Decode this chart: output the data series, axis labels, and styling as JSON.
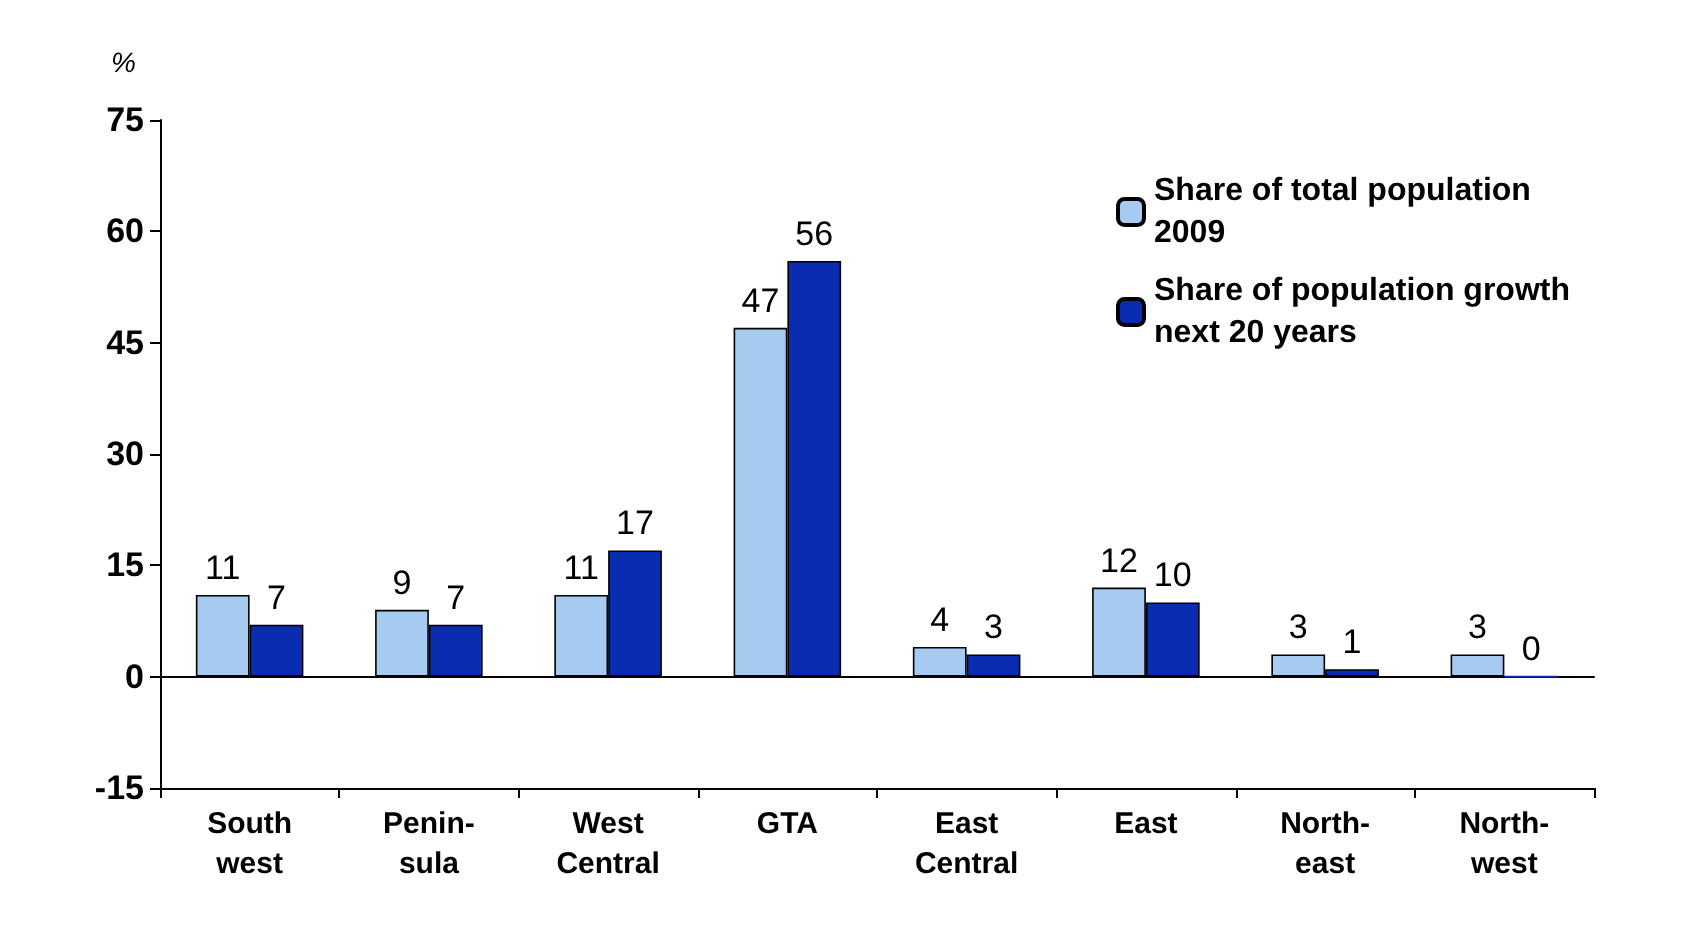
{
  "chart_data": {
    "type": "bar",
    "ylabel": "%",
    "categories": [
      "South\nwest",
      "Penin-\nsula",
      "West\nCentral",
      "GTA",
      "East\nCentral",
      "East",
      "North-\neast",
      "North-\nwest"
    ],
    "series": [
      {
        "name": "Share of total population 2009",
        "color": "#a6caf0",
        "values": [
          11,
          9,
          11,
          47,
          4,
          12,
          3,
          3
        ]
      },
      {
        "name": "Share of population growth next 20 years",
        "color": "#0a2cb0",
        "values": [
          7,
          7,
          17,
          56,
          3,
          10,
          1,
          0
        ]
      }
    ],
    "ylim": [
      -15,
      75
    ],
    "yticks": [
      -15,
      0,
      15,
      30,
      45,
      60,
      75
    ],
    "legend": "top right",
    "data_labels": true
  }
}
